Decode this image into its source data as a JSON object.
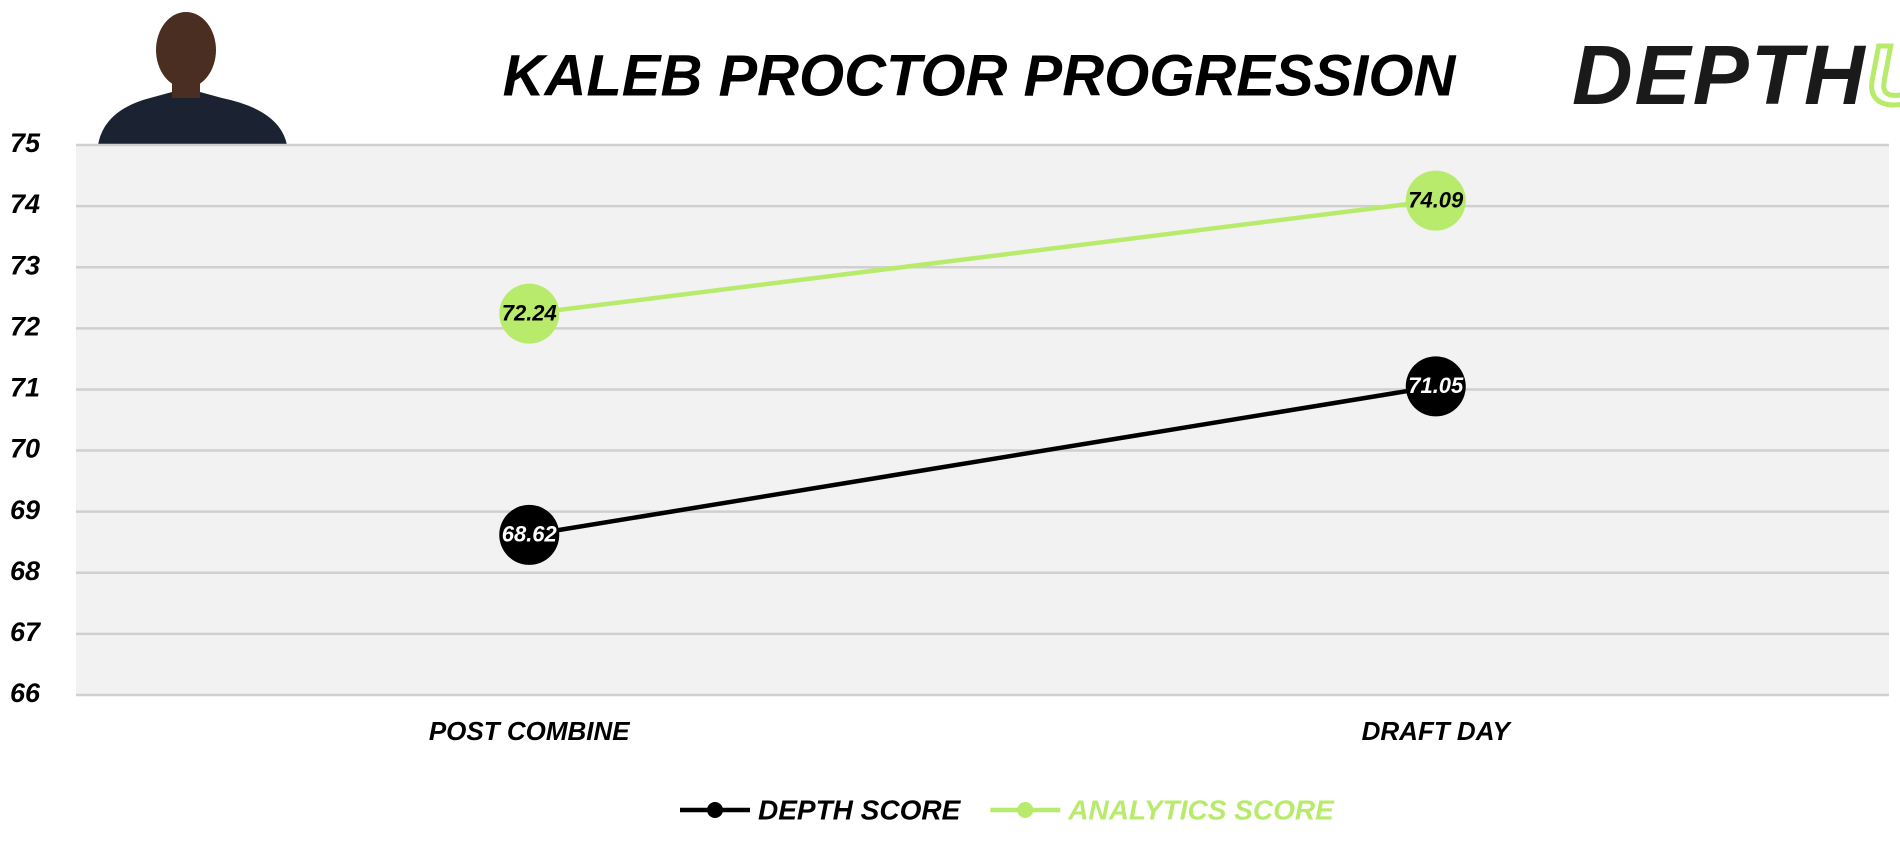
{
  "chart_data": {
    "type": "line",
    "title": "KALEB PROCTOR PROGRESSION",
    "logo_parts": [
      "DEPTH",
      "U"
    ],
    "categories": [
      "POST COMBINE",
      "DRAFT DAY"
    ],
    "series": [
      {
        "name": "DEPTH SCORE",
        "color": "#000000",
        "values": [
          68.62,
          71.05
        ]
      },
      {
        "name": "ANALYTICS SCORE",
        "color": "#b8eb6c",
        "values": [
          72.24,
          74.09
        ]
      }
    ],
    "ylim": [
      66,
      75
    ],
    "yticks": [
      66,
      67,
      68,
      69,
      70,
      71,
      72,
      73,
      74,
      75
    ],
    "grid": true
  }
}
